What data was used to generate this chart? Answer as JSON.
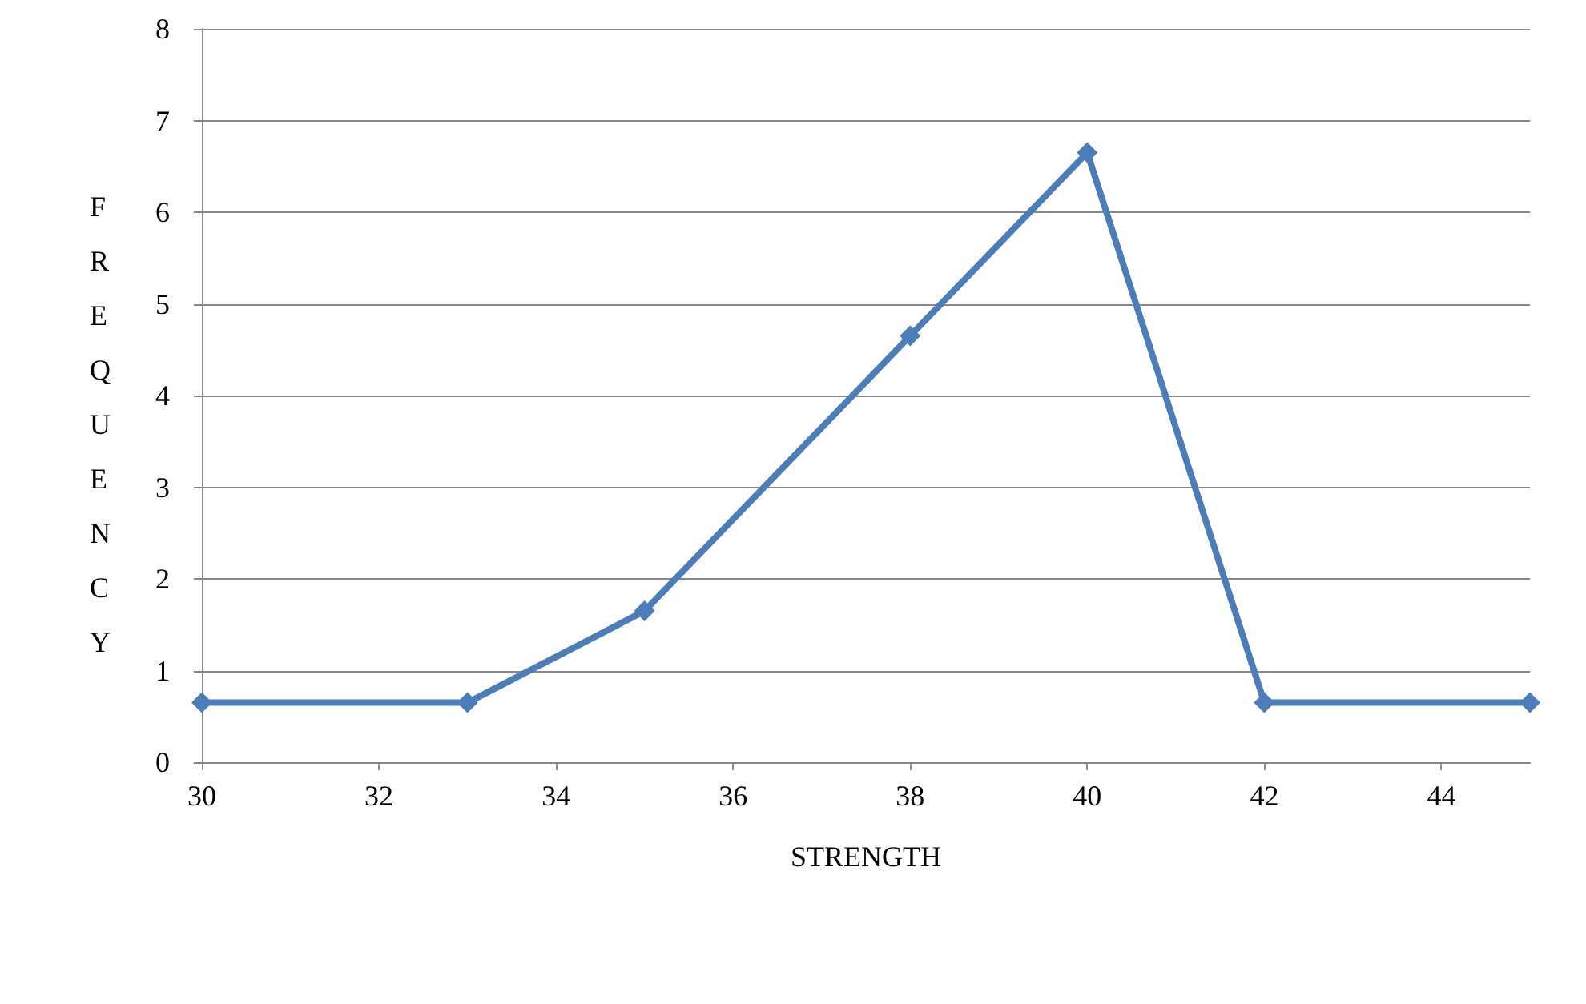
{
  "chart_data": {
    "type": "line",
    "xlabel": "STRENGTH",
    "ylabel": "FREQUENCY",
    "x": [
      30,
      33,
      35,
      38,
      40,
      42,
      45
    ],
    "series": [
      {
        "color": "#4a7ebb",
        "values": [
          0.65,
          0.65,
          1.65,
          4.65,
          6.65,
          0.65,
          0.65
        ]
      }
    ],
    "xlim": [
      30,
      45
    ],
    "xticks": [
      30,
      32,
      34,
      36,
      38,
      40,
      42,
      44
    ],
    "ylim": [
      0,
      8
    ],
    "yticks": [
      0,
      1,
      2,
      3,
      4,
      5,
      6,
      7,
      8
    ],
    "grid": "y",
    "marker": "diamond",
    "line_style": "solid"
  }
}
